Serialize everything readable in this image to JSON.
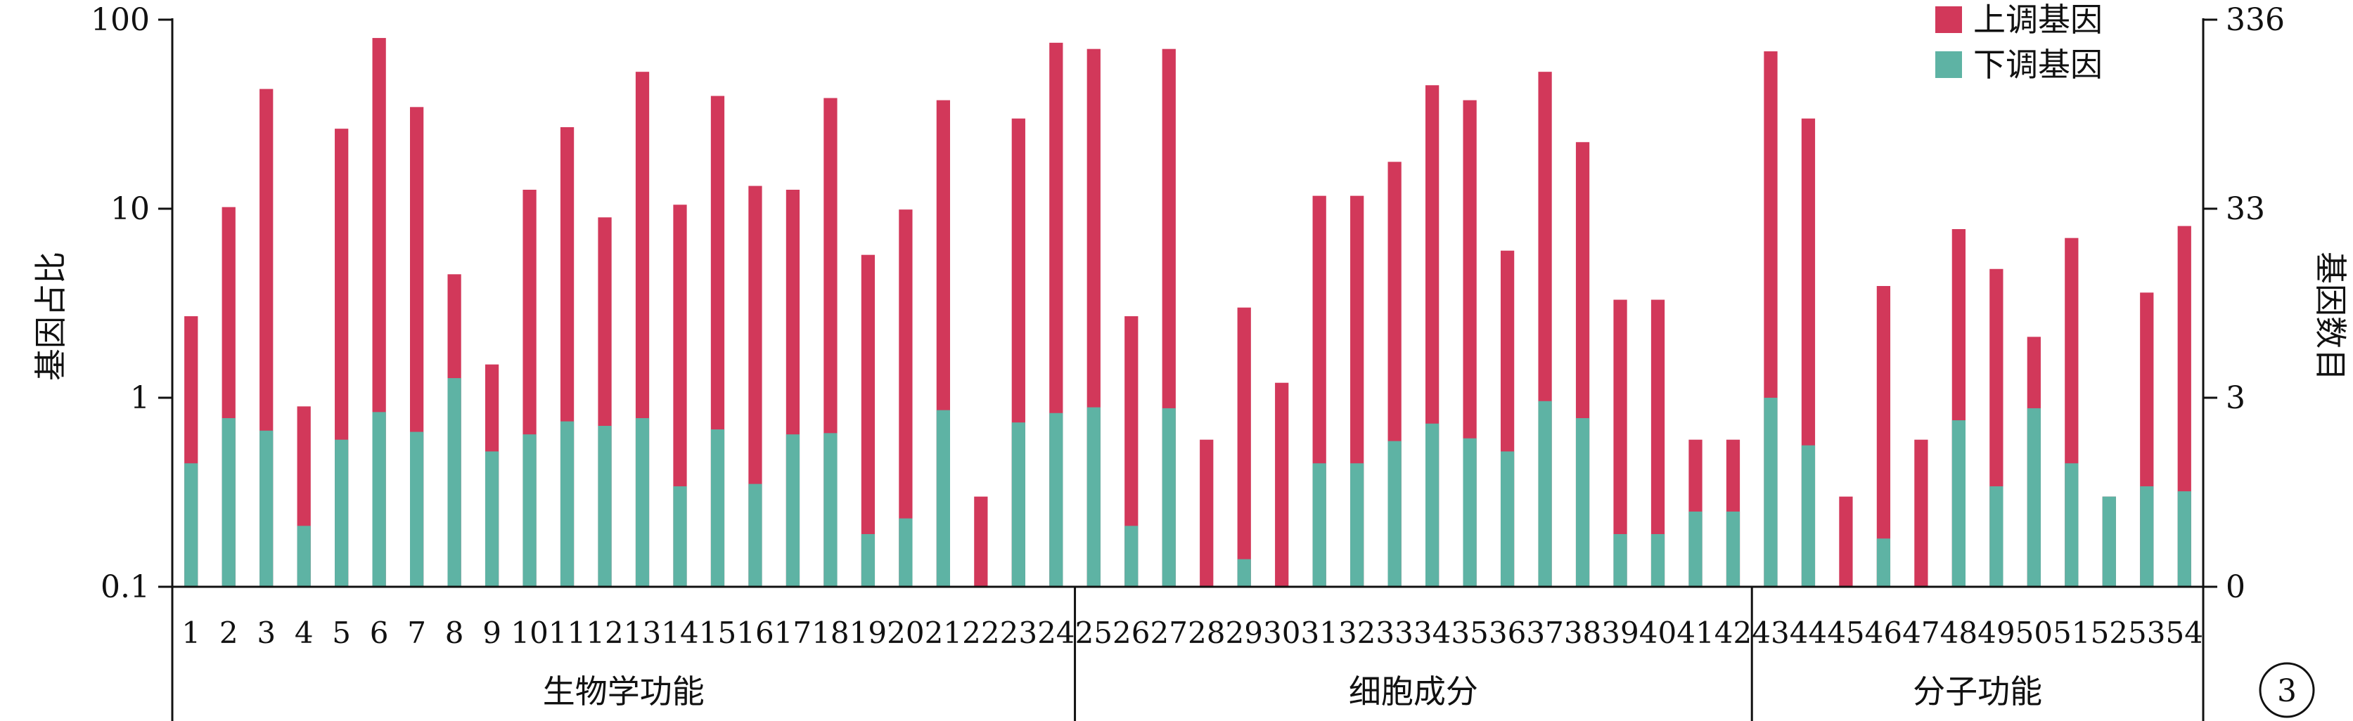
{
  "chart_data": {
    "type": "bar",
    "stacked": true,
    "y_scale": "log",
    "ylabel": "基因占比",
    "ylabel_right": "基因数目",
    "ylim": [
      0.1,
      100
    ],
    "yticks": [
      "0.1",
      "1",
      "10",
      "100"
    ],
    "yticks_right": [
      "0",
      "3",
      "33",
      "336"
    ],
    "legend_position": "top-right",
    "panel_label": "3",
    "colors": {
      "up": "#D2385A",
      "down": "#5EB3A4"
    },
    "categories": [
      "1",
      "2",
      "3",
      "4",
      "5",
      "6",
      "7",
      "8",
      "9",
      "10",
      "11",
      "12",
      "13",
      "14",
      "15",
      "16",
      "17",
      "18",
      "19",
      "20",
      "21",
      "22",
      "23",
      "24",
      "25",
      "26",
      "27",
      "28",
      "29",
      "30",
      "31",
      "32",
      "33",
      "34",
      "35",
      "36",
      "37",
      "38",
      "39",
      "40",
      "41",
      "42",
      "43",
      "44",
      "45",
      "46",
      "47",
      "48",
      "49",
      "50",
      "51",
      "52",
      "53",
      "54"
    ],
    "groups": [
      {
        "name": "生物学功能",
        "from": 1,
        "to": 24
      },
      {
        "name": "细胞成分",
        "from": 25,
        "to": 42
      },
      {
        "name": "分子功能",
        "from": 43,
        "to": 54
      }
    ],
    "series": [
      {
        "name": "上调基因",
        "key": "up",
        "values": [
          2.7,
          10.2,
          43,
          0.9,
          26.5,
          80,
          34.5,
          4.5,
          1.5,
          12.6,
          27,
          9,
          53,
          10.5,
          39.5,
          13.2,
          12.6,
          38.5,
          5.7,
          9.9,
          37.5,
          0.3,
          30,
          75.5,
          70,
          2.7,
          70,
          0.6,
          3,
          1.2,
          11.7,
          11.7,
          17.7,
          45,
          37.5,
          6,
          53,
          22.5,
          3.3,
          3.3,
          0.6,
          0.6,
          68,
          30,
          0.3,
          3.9,
          0.6,
          7.8,
          4.8,
          2.1,
          7,
          0.3,
          3.6,
          8.1
        ]
      },
      {
        "name": "下调基因",
        "key": "down",
        "values": [
          0.45,
          0.78,
          0.67,
          0.21,
          0.6,
          0.84,
          0.66,
          1.27,
          0.52,
          0.64,
          0.75,
          0.71,
          0.78,
          0.34,
          0.68,
          0.35,
          0.64,
          0.65,
          0.19,
          0.23,
          0.86,
          0,
          0.74,
          0.83,
          0.89,
          0.21,
          0.88,
          0,
          0.14,
          0,
          0.45,
          0.45,
          0.59,
          0.73,
          0.61,
          0.52,
          0.96,
          0.78,
          0.19,
          0.19,
          0.25,
          0.25,
          1.0,
          0.56,
          0,
          0.18,
          0,
          0.76,
          0.34,
          0.88,
          0.45,
          0.3,
          0.34,
          0.32
        ]
      }
    ]
  }
}
